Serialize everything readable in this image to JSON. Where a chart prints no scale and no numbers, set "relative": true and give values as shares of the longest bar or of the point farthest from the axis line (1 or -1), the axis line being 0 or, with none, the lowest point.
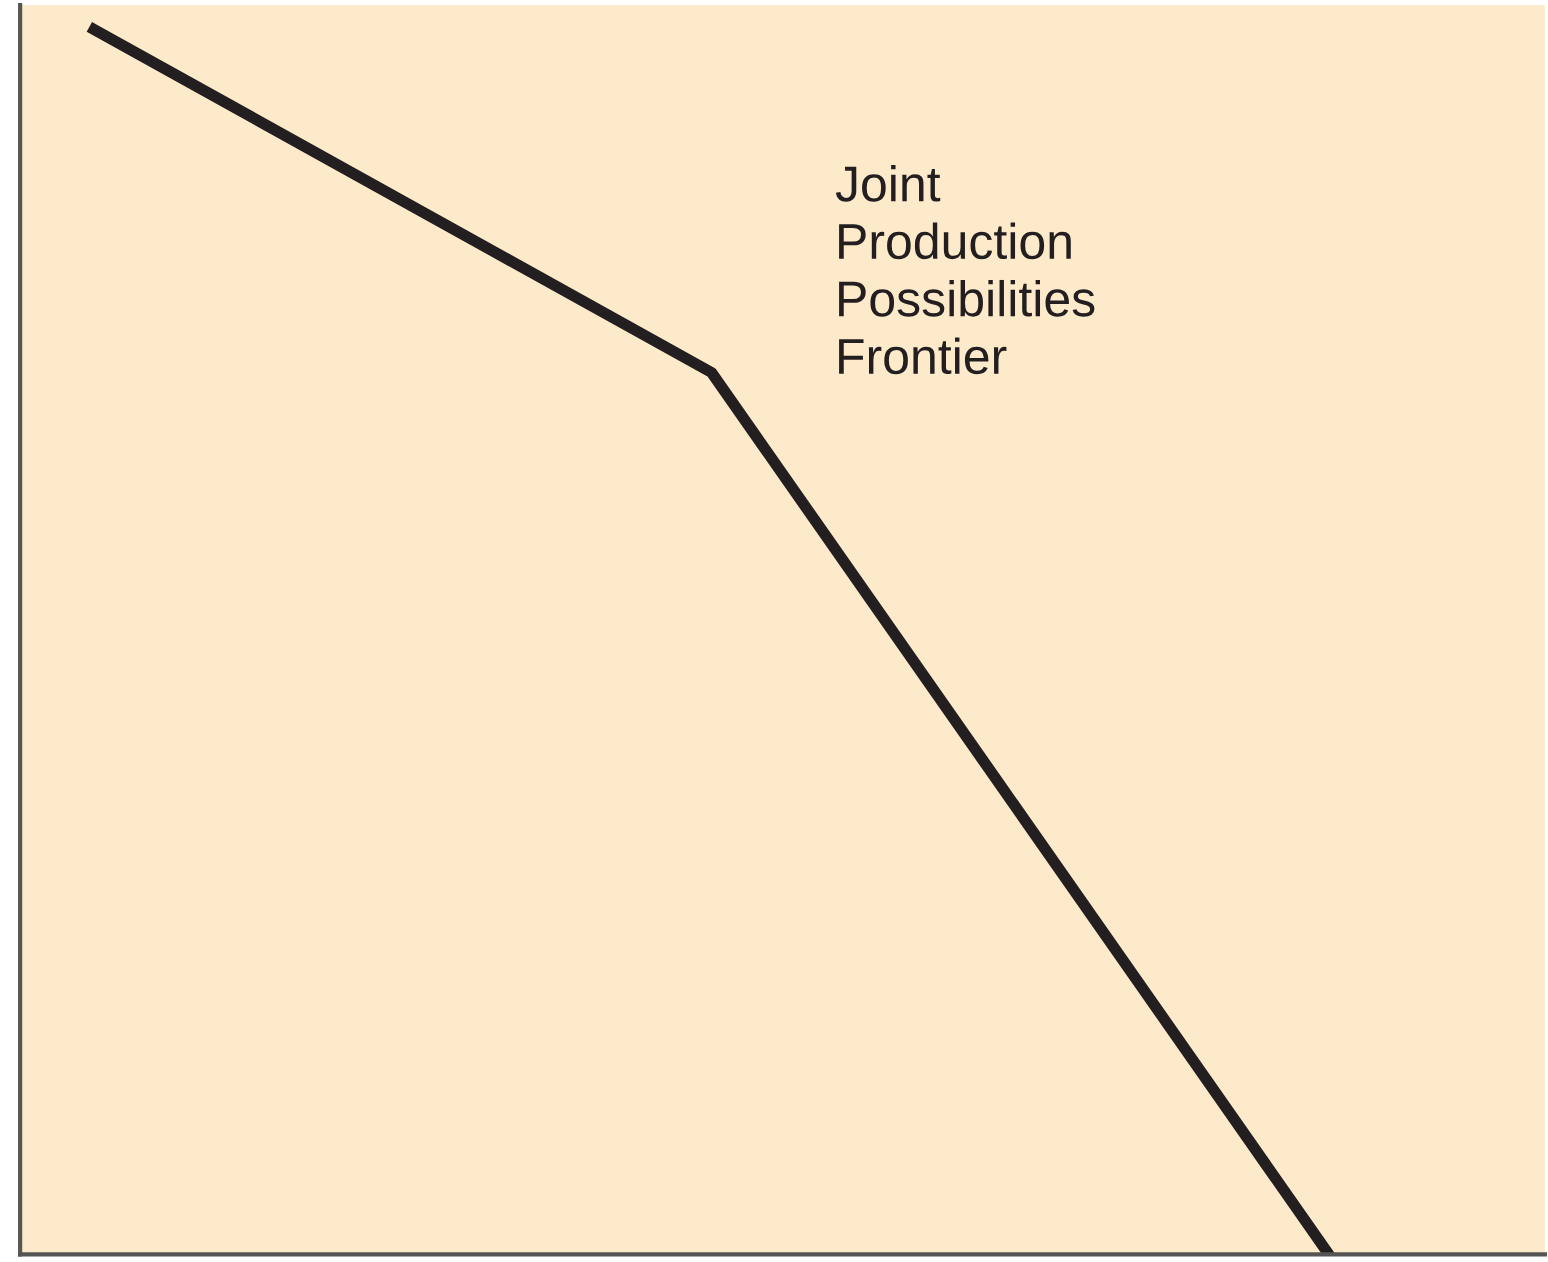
{
  "chart_data": {
    "type": "line",
    "relative": true,
    "categories": [
      null,
      null,
      null
    ],
    "series": [
      {
        "name": "Joint Production Possibilities Frontier",
        "color": "#231f20",
        "values": [
          1,
          0.72,
          0
        ]
      }
    ],
    "legend": false,
    "grid": false,
    "marker": "none",
    "line_style": "solid"
  }
}
